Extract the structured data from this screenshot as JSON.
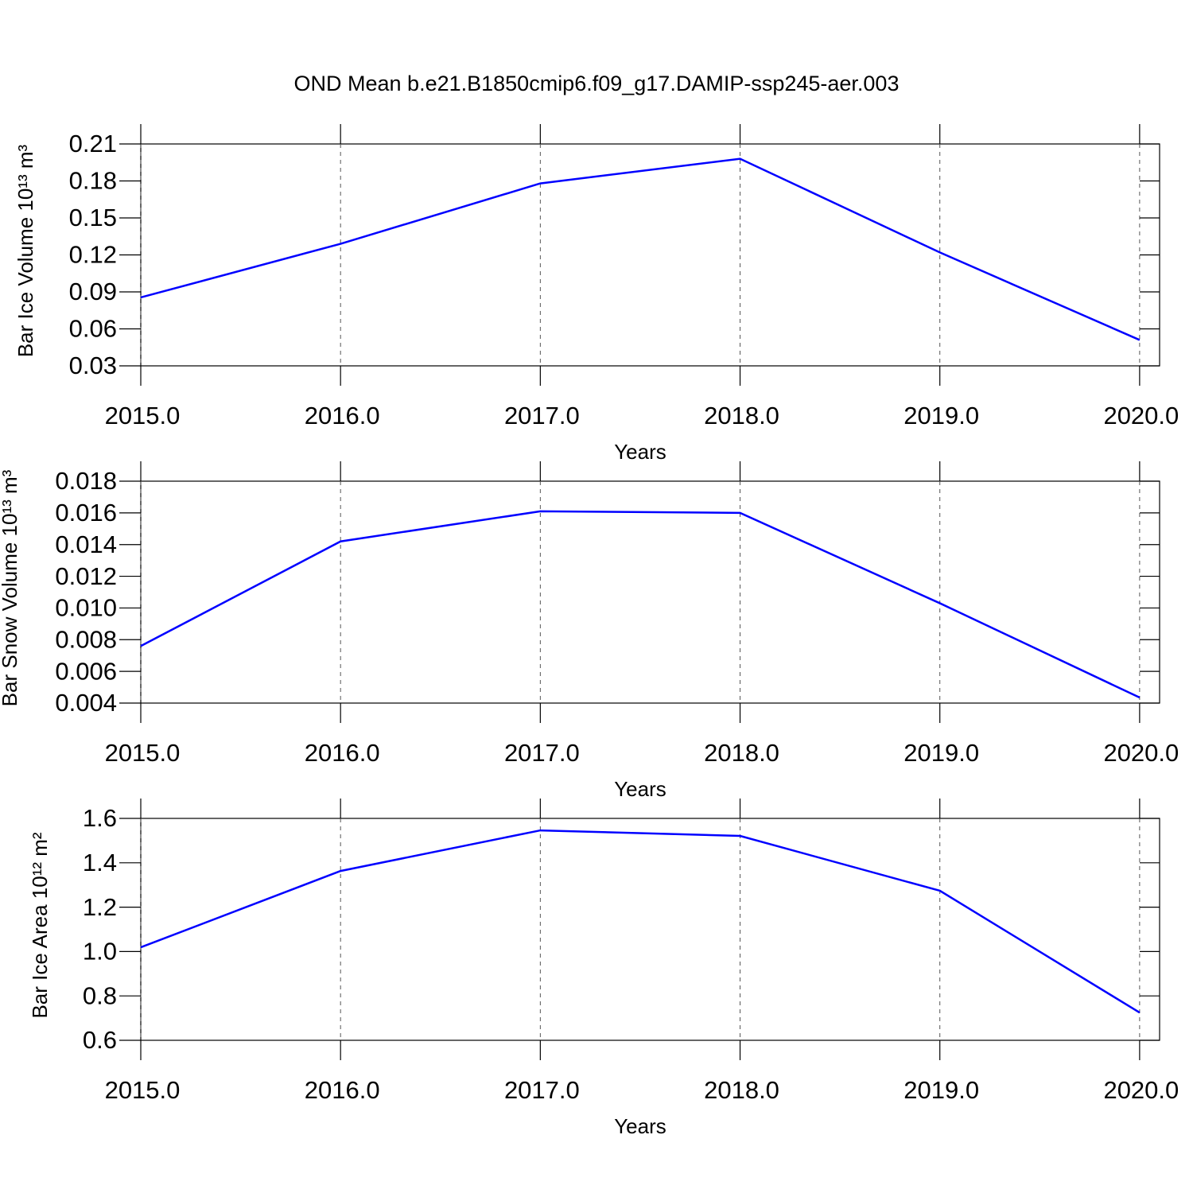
{
  "chart_data": [
    {
      "type": "line",
      "title": "OND Mean b.e21.B1850cmip6.f09_g17.DAMIP-ssp245-aer.003",
      "xlabel": "Years",
      "ylabel": "Bar Ice Volume 10¹³ m³",
      "x": [
        2015,
        2016,
        2017,
        2018,
        2019,
        2020
      ],
      "series": [
        {
          "color": "#0000ff",
          "values": [
            0.0855,
            0.129,
            0.178,
            0.198,
            0.122,
            0.051
          ]
        }
      ],
      "xlim": [
        2015,
        2020.1
      ],
      "xticks": [
        {
          "value": 2015,
          "label": "2015.0"
        },
        {
          "value": 2016,
          "label": "2016.0"
        },
        {
          "value": 2017,
          "label": "2017.0"
        },
        {
          "value": 2018,
          "label": "2018.0"
        },
        {
          "value": 2019,
          "label": "2019.0"
        },
        {
          "value": 2020,
          "label": "2020.0"
        }
      ],
      "ylim": [
        0.03,
        0.21
      ],
      "yticks": [
        0.03,
        0.06,
        0.09,
        0.12,
        0.15,
        0.18,
        0.21
      ],
      "xgrid": true
    },
    {
      "type": "line",
      "xlabel": "Years",
      "ylabel": "Bar Snow Volume 10¹³ m³",
      "x": [
        2015,
        2016,
        2017,
        2018,
        2019,
        2020
      ],
      "series": [
        {
          "color": "#0000ff",
          "values": [
            0.0076,
            0.0142,
            0.0161,
            0.016,
            0.0103,
            0.00435
          ]
        }
      ],
      "xlim": [
        2015,
        2020.1
      ],
      "xticks": [
        {
          "value": 2015,
          "label": "2015.0"
        },
        {
          "value": 2016,
          "label": "2016.0"
        },
        {
          "value": 2017,
          "label": "2017.0"
        },
        {
          "value": 2018,
          "label": "2018.0"
        },
        {
          "value": 2019,
          "label": "2019.0"
        },
        {
          "value": 2020,
          "label": "2020.0"
        }
      ],
      "ylim": [
        0.004,
        0.018
      ],
      "yticks": [
        0.004,
        0.006,
        0.008,
        {
          "value": 0.01,
          "label": "0.010"
        },
        0.012,
        0.014,
        0.016,
        0.018
      ],
      "xgrid": true
    },
    {
      "type": "line",
      "xlabel": "Years",
      "ylabel": "Bar Ice Area 10¹² m²",
      "x": [
        2015,
        2016,
        2017,
        2018,
        2019,
        2020
      ],
      "series": [
        {
          "color": "#0000ff",
          "values": [
            1.019,
            1.363,
            1.546,
            1.521,
            1.274,
            0.725
          ]
        }
      ],
      "xlim": [
        2015,
        2020.1
      ],
      "xticks": [
        {
          "value": 2015,
          "label": "2015.0"
        },
        {
          "value": 2016,
          "label": "2016.0"
        },
        {
          "value": 2017,
          "label": "2017.0"
        },
        {
          "value": 2018,
          "label": "2018.0"
        },
        {
          "value": 2019,
          "label": "2019.0"
        },
        {
          "value": 2020,
          "label": "2020.0"
        }
      ],
      "ylim": [
        0.6,
        1.6
      ],
      "yticks": [
        0.6,
        0.8,
        {
          "value": 1,
          "label": "1.0"
        },
        1.2,
        1.4,
        1.6
      ],
      "xgrid": true
    }
  ]
}
